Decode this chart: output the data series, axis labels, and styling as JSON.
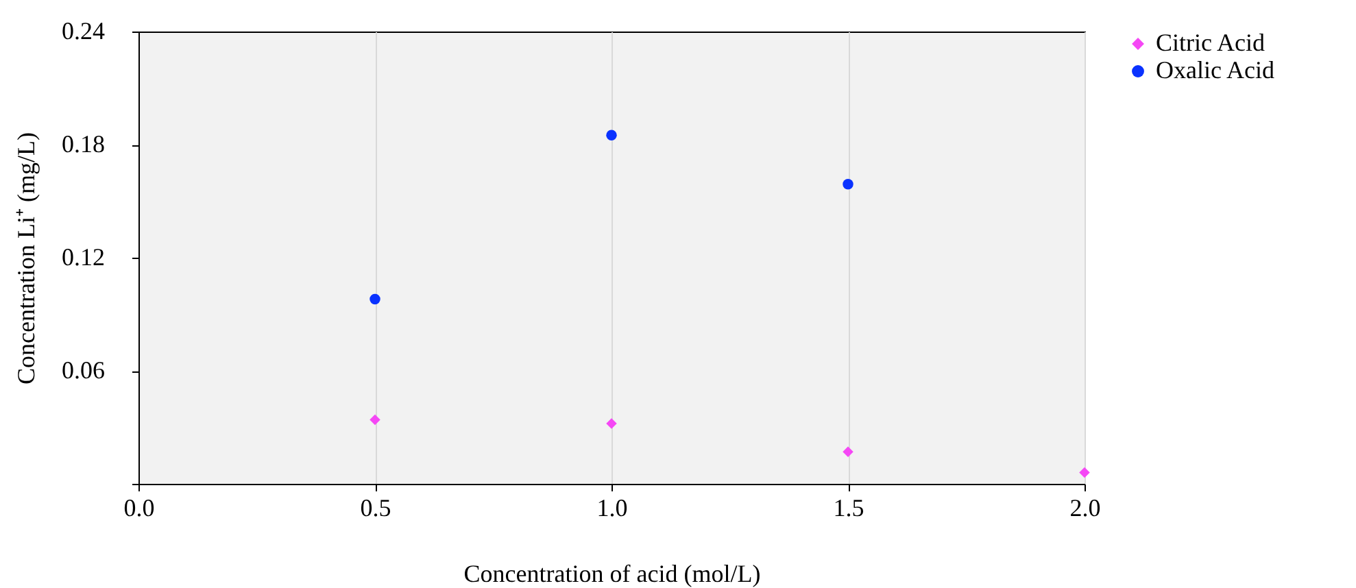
{
  "chart_data": {
    "type": "scatter",
    "xlabel": "Concentration of acid (mol/L)",
    "ylabel": "Concentration Li⁺ (mg/L)",
    "xlim": [
      0,
      2
    ],
    "xticks": [
      {
        "value": 0,
        "label": "0.0"
      },
      {
        "value": 0.5,
        "label": "0.5"
      },
      {
        "value": 1,
        "label": "1.0"
      },
      {
        "value": 1.5,
        "label": "1.5"
      },
      {
        "value": 2,
        "label": "2.0"
      }
    ],
    "ylim": [
      0,
      0.24
    ],
    "yticks": [
      {
        "value": 0,
        "label": null
      },
      0.06,
      0.12,
      0.18,
      0.24
    ],
    "grid": "x",
    "legend": "right",
    "series": [
      {
        "name": "Citric Acid",
        "color": "#f547f5",
        "marker": "diamond",
        "x": [
          0.5,
          1,
          1.5,
          2
        ],
        "values": [
          0.034,
          0.032,
          0.017,
          0.006
        ]
      },
      {
        "name": "Oxalic Acid",
        "color": "#0a32ff",
        "marker": "circle",
        "x": [
          0.5,
          1,
          1.5
        ],
        "values": [
          0.098,
          0.185,
          0.159
        ]
      }
    ]
  }
}
